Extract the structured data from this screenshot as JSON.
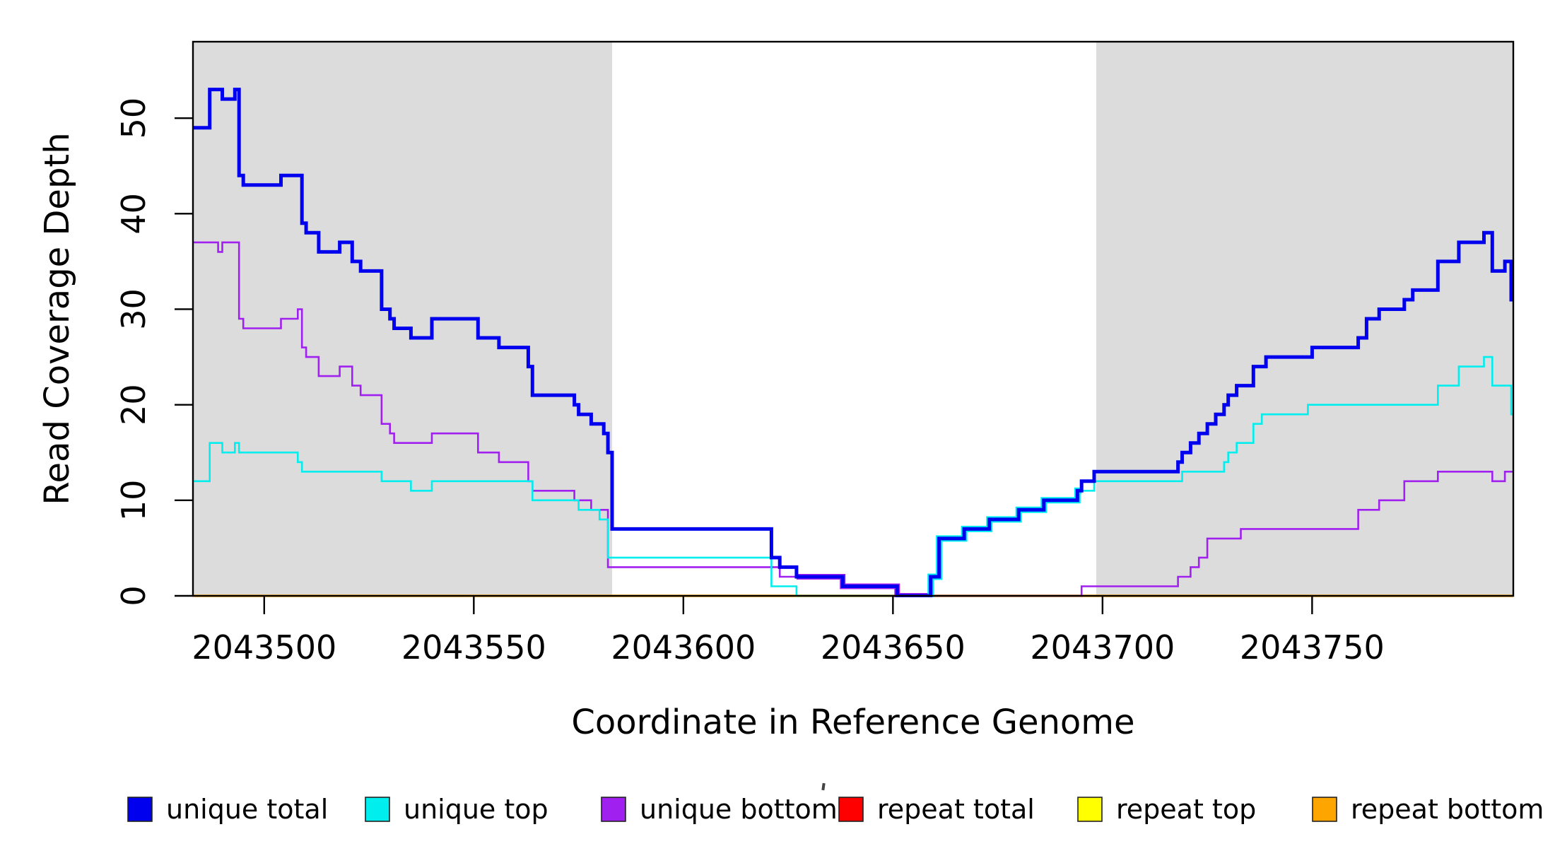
{
  "y_axis": {
    "label": "Read Coverage Depth",
    "ticks": [
      0,
      10,
      20,
      30,
      40,
      50
    ]
  },
  "x_axis": {
    "label": "Coordinate in Reference Genome",
    "ticks": [
      2043500,
      2043550,
      2043600,
      2043650,
      2043700,
      2043750
    ]
  },
  "legend": {
    "items": [
      {
        "label": "unique total",
        "color": "#0000ee"
      },
      {
        "label": "unique top",
        "color": "#00eeee"
      },
      {
        "label": "unique bottom",
        "color": "#a020f0"
      },
      {
        "label": "repeat total",
        "color": "#ff0000"
      },
      {
        "label": "repeat top",
        "color": "#ffff00"
      },
      {
        "label": "repeat bottom",
        "color": "#ffa500"
      }
    ]
  },
  "chart_data": {
    "type": "line",
    "step_mode": "after",
    "title": "",
    "xlabel": "Coordinate in Reference Genome",
    "ylabel": "Read Coverage Depth",
    "xlim": [
      2043483,
      2043798
    ],
    "ylim": [
      0,
      58
    ],
    "grid": false,
    "legend_position": "bottom",
    "background_color": "#ffffff",
    "shaded_band_color": "#dcdcdc",
    "shaded_regions": [
      {
        "from": 2043483,
        "to": 2043583
      },
      {
        "from": 2043698.5,
        "to": 2043798
      }
    ],
    "series": [
      {
        "name": "repeat total",
        "color": "#ff0000",
        "width": 2,
        "points": [
          [
            2043483,
            0
          ]
        ]
      },
      {
        "name": "repeat top",
        "color": "#ffff00",
        "width": 2,
        "points": [
          [
            2043483,
            0
          ]
        ]
      },
      {
        "name": "repeat bottom",
        "color": "#ffa500",
        "width": 3.4,
        "points": [
          [
            2043483,
            0
          ]
        ]
      },
      {
        "name": "unique bottom",
        "color": "#a020f0",
        "width": 2.6,
        "points": [
          [
            2043483,
            37
          ],
          [
            2043489,
            36
          ],
          [
            2043490,
            37
          ],
          [
            2043494,
            29
          ],
          [
            2043495,
            28
          ],
          [
            2043504,
            29
          ],
          [
            2043508,
            30
          ],
          [
            2043509,
            26
          ],
          [
            2043510,
            25
          ],
          [
            2043513,
            23
          ],
          [
            2043518,
            24
          ],
          [
            2043521,
            22
          ],
          [
            2043523,
            21
          ],
          [
            2043528,
            18
          ],
          [
            2043530,
            17
          ],
          [
            2043531,
            16
          ],
          [
            2043540,
            17
          ],
          [
            2043551,
            15
          ],
          [
            2043556,
            14
          ],
          [
            2043563,
            12
          ],
          [
            2043564,
            11
          ],
          [
            2043574,
            10
          ],
          [
            2043578,
            9
          ],
          [
            2043582,
            3
          ],
          [
            2043623,
            2
          ],
          [
            2043638,
            1
          ],
          [
            2043651,
            0
          ],
          [
            2043695,
            1
          ],
          [
            2043718,
            2
          ],
          [
            2043721,
            3
          ],
          [
            2043723,
            4
          ],
          [
            2043725,
            6
          ],
          [
            2043733,
            7
          ],
          [
            2043761,
            9
          ],
          [
            2043766,
            10
          ],
          [
            2043772,
            12
          ],
          [
            2043780,
            13
          ],
          [
            2043793,
            12
          ],
          [
            2043796,
            13
          ]
        ]
      },
      {
        "name": "unique top",
        "color": "#00eeee",
        "width": 2.6,
        "points": [
          [
            2043483,
            12
          ],
          [
            2043487,
            16
          ],
          [
            2043490,
            15
          ],
          [
            2043493,
            16
          ],
          [
            2043494,
            15
          ],
          [
            2043508,
            14
          ],
          [
            2043509,
            13
          ],
          [
            2043528,
            12
          ],
          [
            2043535,
            11
          ],
          [
            2043540,
            12
          ],
          [
            2043564,
            10
          ],
          [
            2043575,
            9
          ],
          [
            2043580,
            8
          ],
          [
            2043582,
            4
          ],
          [
            2043621,
            1
          ],
          [
            2043627,
            0
          ],
          [
            2043659,
            2
          ],
          [
            2043661,
            6
          ],
          [
            2043667,
            7
          ],
          [
            2043673,
            8
          ],
          [
            2043680,
            9
          ],
          [
            2043686,
            10
          ],
          [
            2043694,
            11
          ],
          [
            2043698,
            12
          ],
          [
            2043719,
            13
          ],
          [
            2043729,
            14
          ],
          [
            2043730,
            15
          ],
          [
            2043732,
            16
          ],
          [
            2043736,
            18
          ],
          [
            2043738,
            19
          ],
          [
            2043749,
            20
          ],
          [
            2043780,
            22
          ],
          [
            2043785,
            24
          ],
          [
            2043791,
            25
          ],
          [
            2043793,
            22
          ],
          [
            2043797.5,
            19
          ]
        ]
      },
      {
        "name": "unique total",
        "color": "#0000ee",
        "width": 5,
        "points": [
          [
            2043483,
            49
          ],
          [
            2043487,
            53
          ],
          [
            2043490,
            52
          ],
          [
            2043493,
            53
          ],
          [
            2043494,
            44
          ],
          [
            2043495,
            43
          ],
          [
            2043504,
            44
          ],
          [
            2043509,
            39
          ],
          [
            2043510,
            38
          ],
          [
            2043513,
            36
          ],
          [
            2043518,
            37
          ],
          [
            2043521,
            35
          ],
          [
            2043523,
            34
          ],
          [
            2043528,
            30
          ],
          [
            2043530,
            29
          ],
          [
            2043531,
            28
          ],
          [
            2043535,
            27
          ],
          [
            2043540,
            29
          ],
          [
            2043551,
            27
          ],
          [
            2043556,
            26
          ],
          [
            2043563,
            24
          ],
          [
            2043564,
            21
          ],
          [
            2043574,
            20
          ],
          [
            2043575,
            19
          ],
          [
            2043578,
            18
          ],
          [
            2043581,
            17
          ],
          [
            2043582,
            15
          ],
          [
            2043583,
            7
          ],
          [
            2043621,
            4
          ],
          [
            2043623,
            3
          ],
          [
            2043627,
            2
          ],
          [
            2043638,
            1
          ],
          [
            2043651,
            0
          ],
          [
            2043659,
            2
          ],
          [
            2043661,
            6
          ],
          [
            2043667,
            7
          ],
          [
            2043673,
            8
          ],
          [
            2043680,
            9
          ],
          [
            2043686,
            10
          ],
          [
            2043694,
            11
          ],
          [
            2043695,
            12
          ],
          [
            2043698,
            13
          ],
          [
            2043718,
            14
          ],
          [
            2043719,
            15
          ],
          [
            2043721,
            16
          ],
          [
            2043723,
            17
          ],
          [
            2043725,
            18
          ],
          [
            2043727,
            19
          ],
          [
            2043729,
            20
          ],
          [
            2043730,
            21
          ],
          [
            2043732,
            22
          ],
          [
            2043736,
            24
          ],
          [
            2043739,
            25
          ],
          [
            2043750,
            26
          ],
          [
            2043761,
            27
          ],
          [
            2043763,
            29
          ],
          [
            2043766,
            30
          ],
          [
            2043772,
            31
          ],
          [
            2043774,
            32
          ],
          [
            2043780,
            35
          ],
          [
            2043785,
            37
          ],
          [
            2043791,
            38
          ],
          [
            2043793,
            34
          ],
          [
            2043796,
            35
          ],
          [
            2043797.5,
            31
          ]
        ]
      }
    ],
    "overlap_halos": [
      {
        "series": "unique bottom",
        "from": 2043627,
        "to": 2043659,
        "width": 8
      },
      {
        "series": "unique top",
        "from": 2043658.5,
        "to": 2043695,
        "width": 9
      }
    ]
  }
}
